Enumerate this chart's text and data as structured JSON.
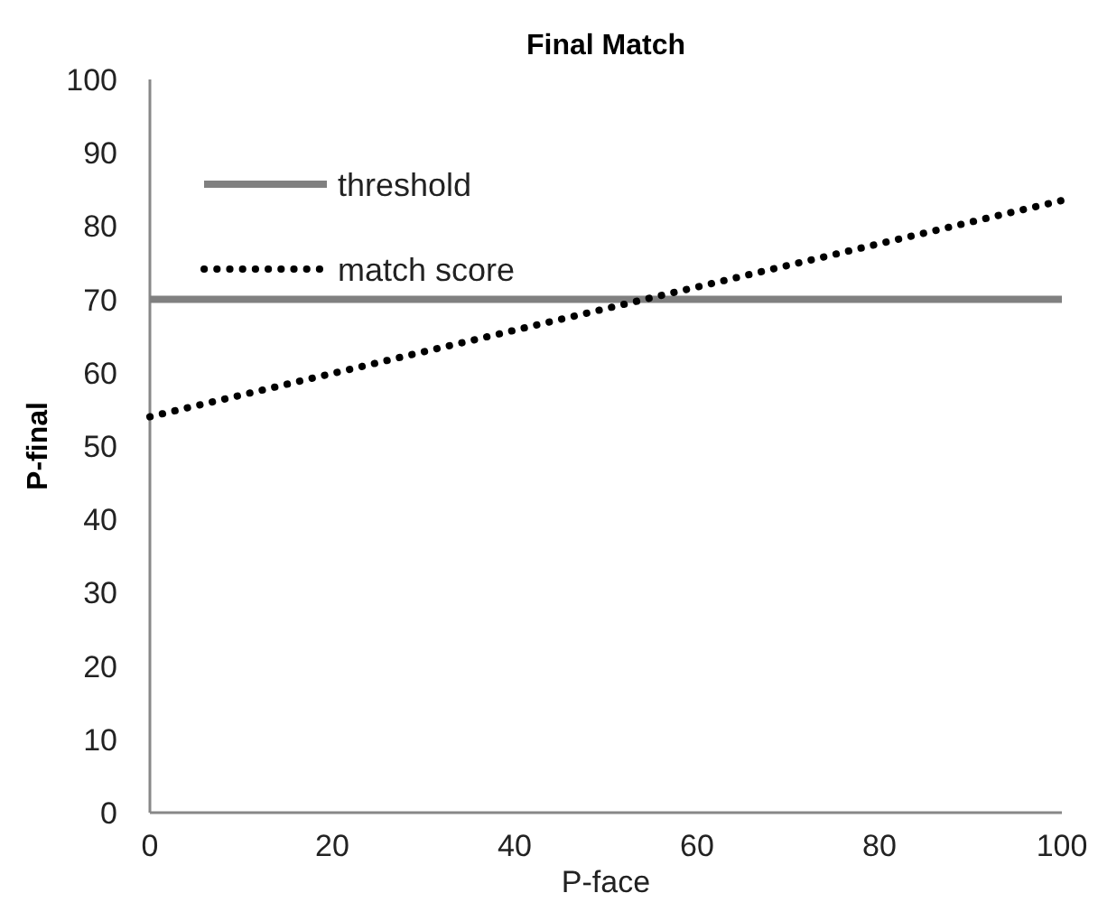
{
  "chart_data": {
    "type": "line",
    "title": "Final Match",
    "xlabel": "P-face",
    "ylabel": "P-final",
    "x": [
      0,
      100
    ],
    "series": [
      {
        "name": "threshold",
        "color": "#808080",
        "values": [
          70,
          70
        ],
        "line_style": "solid"
      },
      {
        "name": "match score",
        "color": "#000000",
        "values": [
          54,
          83.5
        ],
        "line_style": "dotted"
      }
    ],
    "xlim": [
      0,
      100
    ],
    "xticks": [
      0,
      20,
      40,
      60,
      80,
      100
    ],
    "ylim": [
      0,
      100
    ],
    "yticks": [
      0,
      10,
      20,
      30,
      40,
      50,
      60,
      70,
      80,
      90,
      100
    ],
    "grid": false,
    "legend": "top left",
    "marker": "none"
  }
}
